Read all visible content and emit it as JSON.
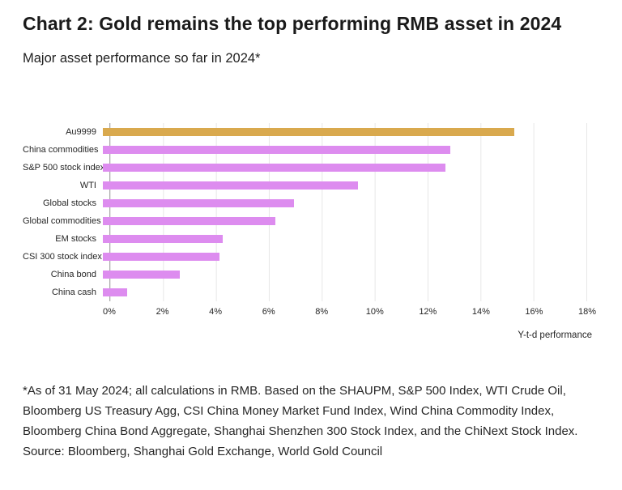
{
  "page": {
    "title": "Chart 2: Gold remains the top performing RMB asset in 2024",
    "subtitle": "Major asset performance so far in 2024*",
    "footnote": "*As of 31 May 2024; all calculations in RMB. Based on the SHAUPM, S&P 500 Index, WTI Crude Oil, Bloomberg US Treasury Agg, CSI China Money Market Fund Index, Wind China Commodity Index, Bloomberg China Bond Aggregate, Shanghai Shenzhen 300 Stock Index, and the ChiNext Stock Index.",
    "source": "Source: Bloomberg, Shanghai Gold Exchange, World Gold Council"
  },
  "chart_data": {
    "type": "bar",
    "orientation": "horizontal",
    "title": "Major asset performance so far in 2024*",
    "xlabel": "Y-t-d performance",
    "ylabel": "",
    "xlim": [
      0,
      18
    ],
    "x_ticks": [
      "0%",
      "2%",
      "4%",
      "6%",
      "8%",
      "10%",
      "12%",
      "14%",
      "16%",
      "18%"
    ],
    "grid": "vertical",
    "legend": "none",
    "categories": [
      "Au9999",
      "China commodities",
      "S&P 500 stock index",
      "WTI",
      "Global stocks",
      "Global commodities",
      "EM stocks",
      "CSI 300 stock index",
      "China bond",
      "China cash"
    ],
    "values": [
      15.5,
      13.1,
      12.9,
      9.6,
      7.2,
      6.5,
      4.5,
      4.4,
      2.9,
      0.9
    ],
    "unit": "%",
    "highlight_category": "Au9999",
    "highlight_color": "#D9A94E",
    "series_color": "#DD8CEF",
    "gridline_color": "#e7e7e7",
    "axis_color": "#ababab"
  }
}
